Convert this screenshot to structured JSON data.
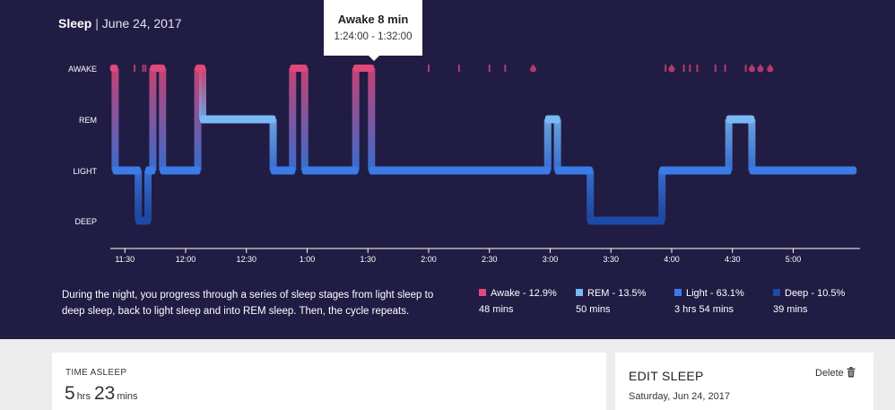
{
  "header": {
    "title": "Sleep",
    "separator": "|",
    "date": "June 24, 2017"
  },
  "tooltip": {
    "title": "Awake 8 min",
    "range": "1:24:00 - 1:32:00"
  },
  "colors": {
    "awake": "#e3487a",
    "rem": "#78b9f6",
    "light": "#3b7be6",
    "deep": "#1d4aa8",
    "background": "#201c44"
  },
  "chart_data": {
    "type": "area",
    "stages": [
      "AWAKE",
      "REM",
      "LIGHT",
      "DEEP"
    ],
    "x_ticks": [
      "11:30",
      "12:00",
      "12:30",
      "1:00",
      "1:30",
      "2:00",
      "2:30",
      "3:00",
      "3:30",
      "4:00",
      "4:30",
      "5:00"
    ],
    "tick_hours": [
      -0.5,
      0,
      0.5,
      1,
      1.5,
      2,
      2.5,
      3,
      3.5,
      4,
      4.5,
      5
    ],
    "x_range_hours": [
      -0.62,
      5.55
    ],
    "segments": [
      {
        "stage": "AWAKE",
        "start": -0.6,
        "end": -0.58
      },
      {
        "stage": "LIGHT",
        "start": -0.58,
        "end": -0.39
      },
      {
        "stage": "DEEP",
        "start": -0.39,
        "end": -0.31
      },
      {
        "stage": "LIGHT",
        "start": -0.31,
        "end": -0.27
      },
      {
        "stage": "AWAKE",
        "start": -0.27,
        "end": -0.19
      },
      {
        "stage": "LIGHT",
        "start": -0.19,
        "end": 0.1
      },
      {
        "stage": "AWAKE",
        "start": 0.1,
        "end": 0.14
      },
      {
        "stage": "REM",
        "start": 0.14,
        "end": 0.72
      },
      {
        "stage": "LIGHT",
        "start": 0.72,
        "end": 0.88
      },
      {
        "stage": "AWAKE",
        "start": 0.88,
        "end": 0.98
      },
      {
        "stage": "LIGHT",
        "start": 0.98,
        "end": 1.4
      },
      {
        "stage": "AWAKE",
        "start": 1.4,
        "end": 1.53
      },
      {
        "stage": "LIGHT",
        "start": 1.53,
        "end": 2.98
      },
      {
        "stage": "REM",
        "start": 2.98,
        "end": 3.06
      },
      {
        "stage": "LIGHT",
        "start": 3.06,
        "end": 3.33
      },
      {
        "stage": "DEEP",
        "start": 3.33,
        "end": 3.92
      },
      {
        "stage": "LIGHT",
        "start": 3.92,
        "end": 4.47
      },
      {
        "stage": "REM",
        "start": 4.47,
        "end": 4.66
      },
      {
        "stage": "LIGHT",
        "start": 4.66,
        "end": 5.5
      }
    ],
    "brief_awake_marks": [
      -0.42,
      -0.35,
      -0.33,
      2.0,
      2.25,
      2.5,
      2.63,
      2.86,
      3.95,
      4.0,
      4.1,
      4.15,
      4.21,
      4.36,
      4.44,
      4.61,
      4.66,
      4.73,
      4.81
    ],
    "brief_awake_dots": [
      2.86,
      4.0,
      4.66,
      4.73,
      4.81
    ]
  },
  "description": "During the night, you progress through a series of sleep stages from light sleep to deep sleep, back to light sleep and into REM sleep. Then, the cycle repeats.",
  "legend": [
    {
      "label": "Awake - 12.9%",
      "duration": "48 mins"
    },
    {
      "label": "REM - 13.5%",
      "duration": "50 mins"
    },
    {
      "label": "Light - 63.1%",
      "duration": "3 hrs 54 mins"
    },
    {
      "label": "Deep - 10.5%",
      "duration": "39 mins"
    }
  ],
  "time_asleep": {
    "label": "TIME ASLEEP",
    "hours": "5",
    "hours_unit": "hrs",
    "minutes": "23",
    "minutes_unit": "mins"
  },
  "edit_sleep": {
    "title": "EDIT SLEEP",
    "date": "Saturday, Jun 24, 2017",
    "delete_label": "Delete"
  }
}
